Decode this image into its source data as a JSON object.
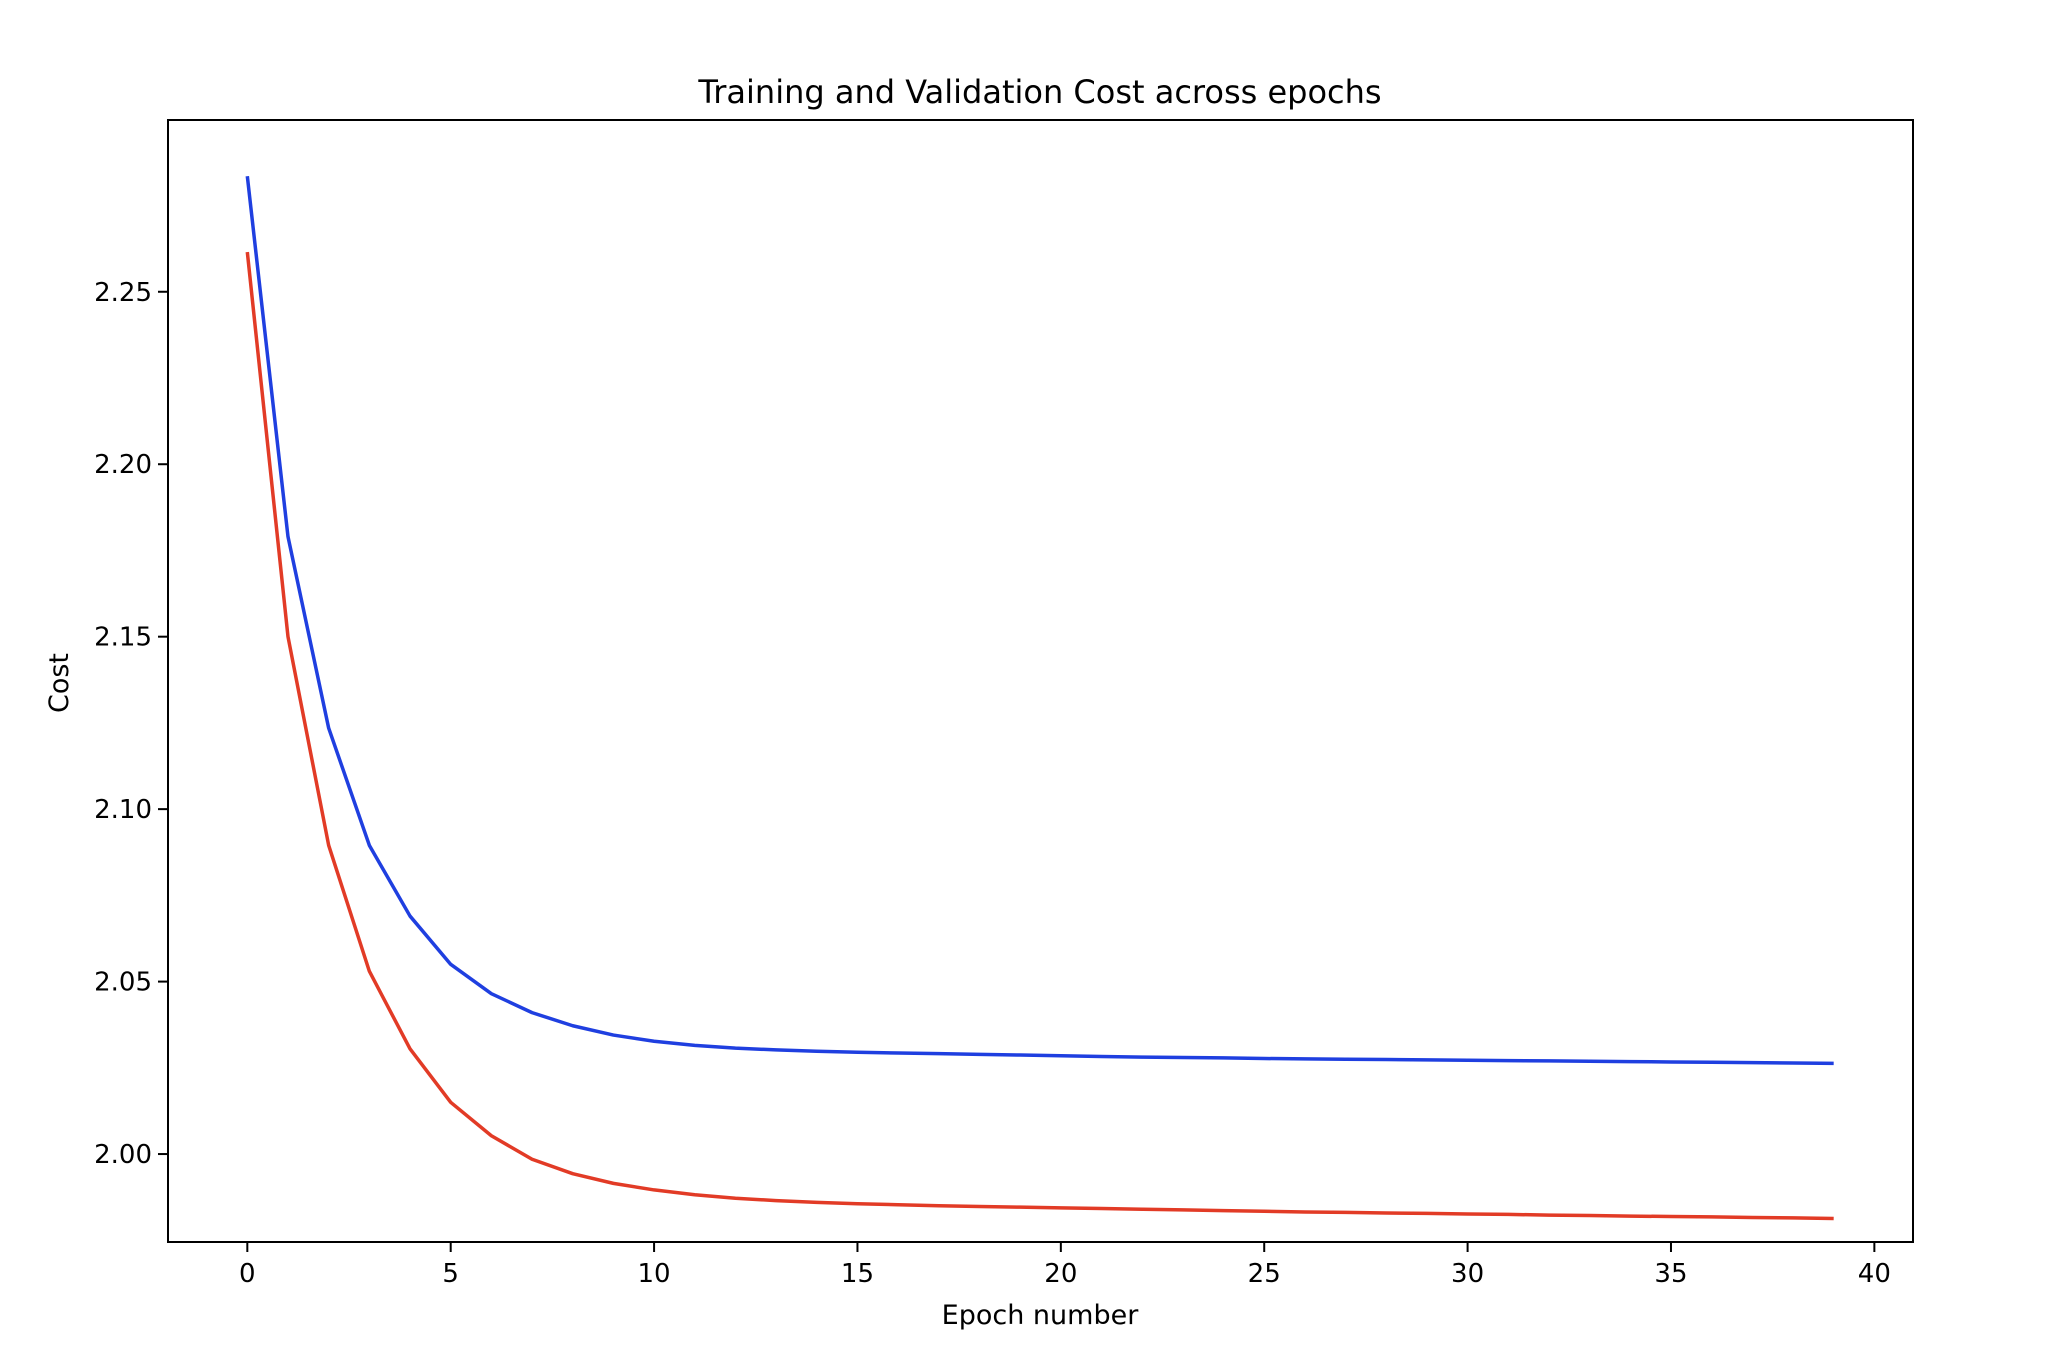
{
  "chart_data": {
    "type": "line",
    "title": "Training and Validation Cost across epochs",
    "xlabel": "Epoch number",
    "ylabel": "Cost",
    "xlim": [
      -1.95,
      40.95
    ],
    "ylim": [
      1.9745,
      2.2998
    ],
    "xticks": [
      0,
      5,
      10,
      15,
      20,
      25,
      30,
      35,
      40
    ],
    "xtick_labels": [
      "0",
      "5",
      "10",
      "15",
      "20",
      "25",
      "30",
      "35",
      "40"
    ],
    "yticks": [
      2.0,
      2.05,
      2.1,
      2.15,
      2.2,
      2.25
    ],
    "ytick_labels": [
      "2.00",
      "2.05",
      "2.10",
      "2.15",
      "2.20",
      "2.25"
    ],
    "grid": false,
    "legend": null,
    "x": [
      0,
      1,
      2,
      3,
      4,
      5,
      6,
      7,
      8,
      9,
      10,
      11,
      12,
      13,
      14,
      15,
      16,
      17,
      18,
      19,
      20,
      21,
      22,
      23,
      24,
      25,
      26,
      27,
      28,
      29,
      30,
      31,
      32,
      33,
      34,
      35,
      36,
      37,
      38,
      39
    ],
    "series": [
      {
        "color": "#1f3fe0",
        "values": [
          2.2835,
          2.179,
          2.1235,
          2.0895,
          2.069,
          2.055,
          2.0465,
          2.041,
          2.0372,
          2.0345,
          2.0327,
          2.0315,
          2.0307,
          2.0302,
          2.0298,
          2.0295,
          2.0293,
          2.0291,
          2.0289,
          2.0287,
          2.0285,
          2.0283,
          2.0281,
          2.028,
          2.0279,
          2.0277,
          2.0276,
          2.0275,
          2.0274,
          2.0273,
          2.0272,
          2.0271,
          2.027,
          2.0269,
          2.0268,
          2.0267,
          2.0266,
          2.0265,
          2.0264,
          2.0263
        ]
      },
      {
        "color": "#e23b26",
        "values": [
          2.2615,
          2.15,
          2.0895,
          2.053,
          2.0305,
          2.015,
          2.0053,
          1.9985,
          1.9943,
          1.9915,
          1.9896,
          1.9882,
          1.9872,
          1.9865,
          1.986,
          1.9856,
          1.9853,
          1.985,
          1.9848,
          1.9846,
          1.9844,
          1.9842,
          1.984,
          1.9838,
          1.9836,
          1.9834,
          1.9832,
          1.9831,
          1.9829,
          1.9828,
          1.9826,
          1.9825,
          1.9823,
          1.9822,
          1.982,
          1.9819,
          1.9818,
          1.9816,
          1.9815,
          1.9813
        ]
      }
    ]
  }
}
